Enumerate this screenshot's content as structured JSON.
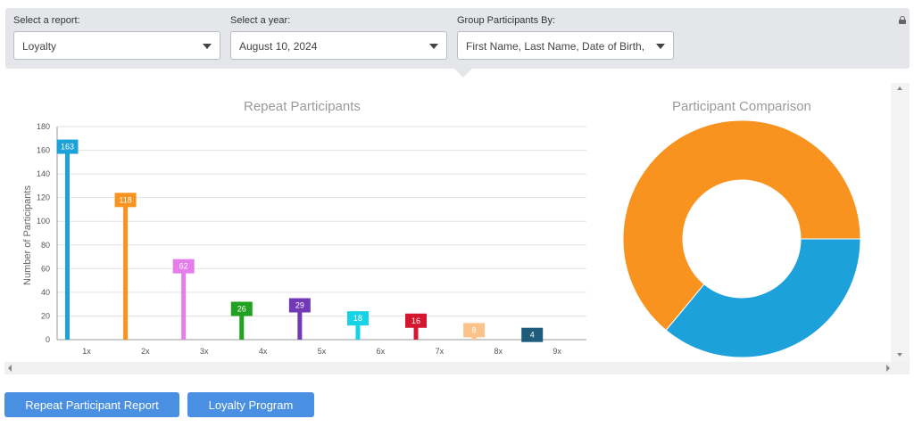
{
  "filters": {
    "report": {
      "label": "Select a report:",
      "value": "Loyalty"
    },
    "year": {
      "label": "Select a year:",
      "value": "August 10, 2024"
    },
    "group": {
      "label": "Group Participants By:",
      "value": "First Name, Last Name, Date of Birth, C"
    }
  },
  "panels": {
    "repeat_title": "Repeat Participants",
    "comparison_title": "Participant Comparison"
  },
  "buttons": {
    "repeat_report": "Repeat Participant Report",
    "loyalty_program": "Loyalty Program"
  },
  "chart_data": [
    {
      "type": "bar",
      "title": "Repeat Participants",
      "xlabel": "",
      "ylabel": "Number of Participants",
      "ylim": [
        0,
        180
      ],
      "yticks": [
        0,
        20,
        40,
        60,
        80,
        100,
        120,
        140,
        160,
        180
      ],
      "grid": true,
      "categories": [
        "1x",
        "2x",
        "3x",
        "4x",
        "5x",
        "6x",
        "7x",
        "8x",
        "9x"
      ],
      "values": [
        163,
        118,
        62,
        26,
        29,
        18,
        16,
        8,
        4
      ],
      "colors": [
        "#1da1db",
        "#f7931e",
        "#e57ded",
        "#21a121",
        "#7139b5",
        "#18d3e8",
        "#d4162e",
        "#fbc28a",
        "#1f5b7a"
      ]
    },
    {
      "type": "pie",
      "title": "Participant Comparison",
      "donut": true,
      "values": [
        64,
        36
      ],
      "colors": [
        "#f7931e",
        "#1da1db"
      ]
    }
  ]
}
